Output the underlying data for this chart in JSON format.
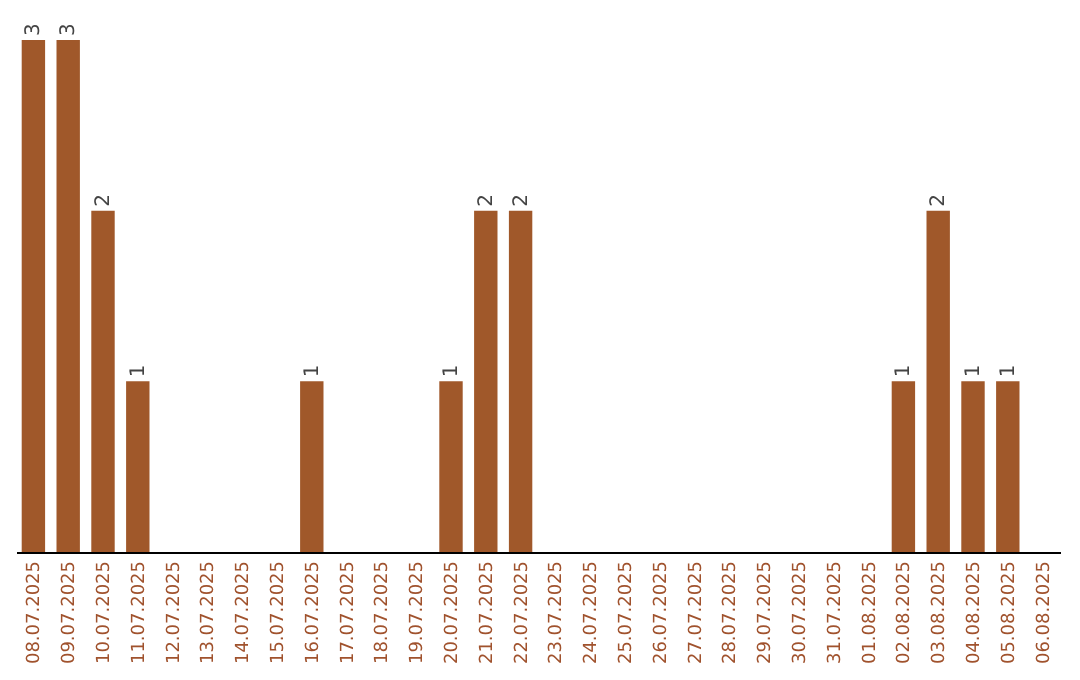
{
  "chart_data": {
    "type": "bar",
    "categories": [
      "08.07.2025",
      "09.07.2025",
      "10.07.2025",
      "11.07.2025",
      "12.07.2025",
      "13.07.2025",
      "14.07.2025",
      "15.07.2025",
      "16.07.2025",
      "17.07.2025",
      "18.07.2025",
      "19.07.2025",
      "20.07.2025",
      "21.07.2025",
      "22.07.2025",
      "23.07.2025",
      "24.07.2025",
      "25.07.2025",
      "26.07.2025",
      "27.07.2025",
      "28.07.2025",
      "29.07.2025",
      "30.07.2025",
      "31.07.2025",
      "01.08.2025",
      "02.08.2025",
      "03.08.2025",
      "04.08.2025",
      "05.08.2025",
      "06.08.2025"
    ],
    "values": [
      3,
      3,
      2,
      1,
      0,
      0,
      0,
      0,
      1,
      0,
      0,
      0,
      1,
      2,
      2,
      0,
      0,
      0,
      0,
      0,
      0,
      0,
      0,
      0,
      0,
      1,
      2,
      1,
      1,
      0
    ],
    "value_labels": [
      "3",
      "3",
      "2",
      "1",
      null,
      null,
      null,
      null,
      "1",
      null,
      null,
      null,
      "1",
      "2",
      "2",
      null,
      null,
      null,
      null,
      null,
      null,
      null,
      null,
      null,
      null,
      "1",
      "2",
      "1",
      "1",
      null
    ],
    "color": "#a0582a",
    "ylim": [
      0,
      3
    ],
    "grid": false
  }
}
